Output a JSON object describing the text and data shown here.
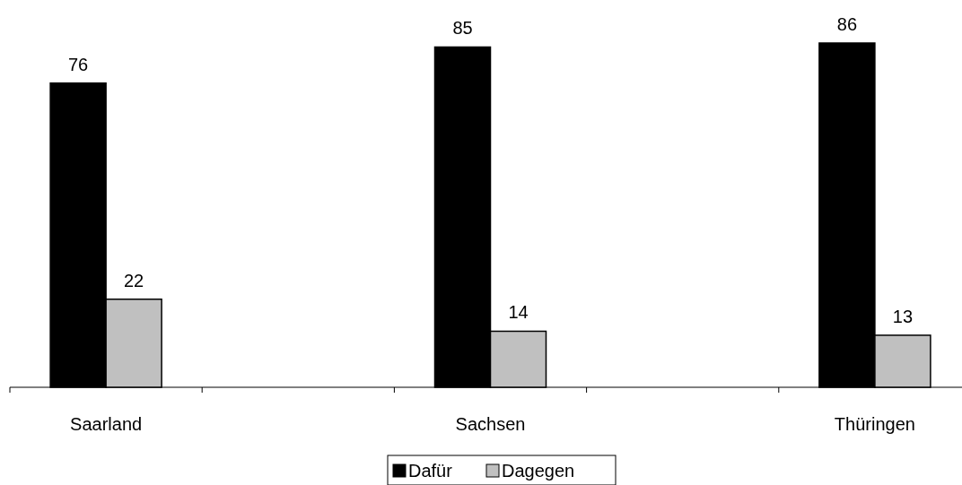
{
  "chart_data": {
    "type": "bar",
    "categories": [
      "Saarland",
      null,
      "Sachsen",
      null,
      "Thüringen"
    ],
    "series": [
      {
        "name": "Dafür",
        "color": "#000000",
        "values": [
          76,
          null,
          85,
          null,
          86
        ]
      },
      {
        "name": "Dagegen",
        "color": "#c0c0c0",
        "values": [
          22,
          null,
          14,
          null,
          13
        ]
      }
    ],
    "data_labels": true,
    "legend": "bottom"
  }
}
